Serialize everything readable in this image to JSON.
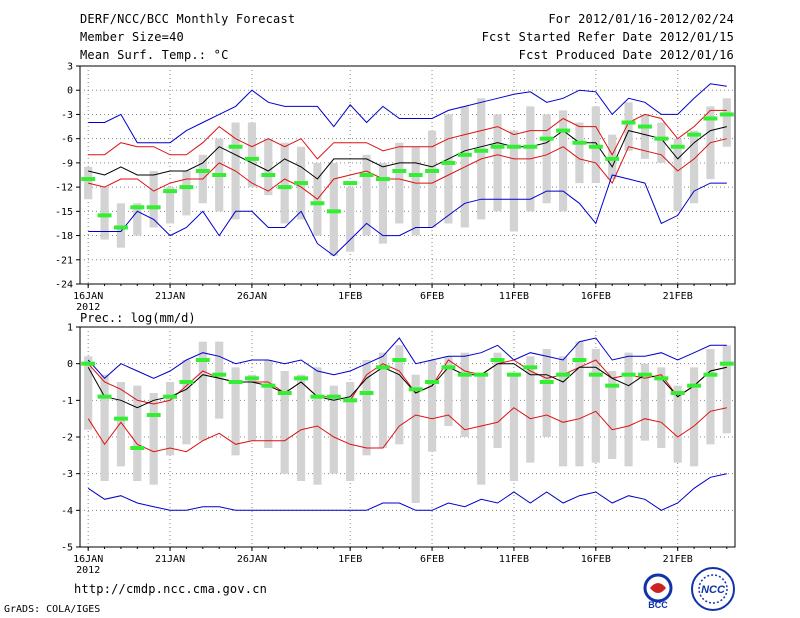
{
  "header": {
    "title": "DERF/NCC/BCC Monthly Forecast",
    "member_size": "Member Size=40",
    "variable": "Mean Surf. Temp.: °C",
    "period": "For 2012/01/16-2012/02/24",
    "started": "Fcst Started Refer Date 2012/01/15",
    "produced": "Fcst Produced Date 2012/01/16"
  },
  "footer": {
    "url": "http://cmdp.ncc.cma.gov.cn",
    "grads": "GrADS: COLA/IGES",
    "logo_bcc": "BCC",
    "logo_ncc": "NCC"
  },
  "colors": {
    "box": "#d3d3d3",
    "median": "#33ee33",
    "mean": "#000000",
    "spread": "#dd1111",
    "extreme": "#0000cc",
    "grid": "#888888"
  },
  "chart_data": [
    {
      "type": "line",
      "title": "Mean Surf. Temp.: °C",
      "x": [
        "16JAN",
        "17JAN",
        "18JAN",
        "19JAN",
        "20JAN",
        "21JAN",
        "22JAN",
        "23JAN",
        "24JAN",
        "25JAN",
        "26JAN",
        "27JAN",
        "28JAN",
        "29JAN",
        "30JAN",
        "31JAN",
        "1FEB",
        "2FEB",
        "3FEB",
        "4FEB",
        "5FEB",
        "6FEB",
        "7FEB",
        "8FEB",
        "9FEB",
        "10FEB",
        "11FEB",
        "12FEB",
        "13FEB",
        "14FEB",
        "15FEB",
        "16FEB",
        "17FEB",
        "18FEB",
        "19FEB",
        "20FEB",
        "21FEB",
        "22FEB",
        "23FEB",
        "24FEB"
      ],
      "x_tick_labels": [
        "16JAN",
        "21JAN",
        "26JAN",
        "1FEB",
        "6FEB",
        "11FEB",
        "16FEB",
        "21FEB"
      ],
      "x_tick_indices": [
        0,
        5,
        10,
        16,
        21,
        26,
        31,
        36
      ],
      "x_year_label": "2012",
      "ylim": [
        -24,
        3
      ],
      "yticks": [
        -24,
        -21,
        -18,
        -15,
        -12,
        -9,
        -6,
        -3,
        0,
        3
      ],
      "series": [
        {
          "name": "max",
          "values": [
            -4,
            -4,
            -3,
            -6.5,
            -6.5,
            -6.5,
            -5,
            -4,
            -3,
            -2,
            0,
            -1.5,
            -2,
            -2,
            -2,
            -4.5,
            -1.8,
            -4,
            -2,
            -3.5,
            -3.5,
            -3.5,
            -2.5,
            -2,
            -1.5,
            -1,
            -0.5,
            -0.2,
            -1.5,
            -1,
            0,
            -0.2,
            -3,
            -1,
            -1.5,
            -3,
            -3,
            -1,
            0.8,
            0.5
          ]
        },
        {
          "name": "upper",
          "values": [
            -8,
            -8,
            -6.5,
            -7,
            -7,
            -8,
            -8,
            -6.5,
            -4.5,
            -6,
            -7,
            -6,
            -7,
            -6,
            -8.5,
            -6.5,
            -6.5,
            -6.5,
            -7.5,
            -7,
            -7,
            -7,
            -6,
            -5.5,
            -5,
            -4.5,
            -5.5,
            -5,
            -5,
            -3.5,
            -4.5,
            -4.5,
            -8,
            -4,
            -3,
            -3.5,
            -6,
            -4.5,
            -2.5,
            -2.5
          ]
        },
        {
          "name": "mean",
          "values": [
            -10,
            -10.5,
            -9.5,
            -10.5,
            -10.5,
            -10,
            -10,
            -9,
            -7,
            -8,
            -9,
            -10,
            -8.5,
            -9.5,
            -11,
            -8.5,
            -8.5,
            -8.5,
            -9.5,
            -9,
            -9,
            -9.5,
            -8.5,
            -7.5,
            -7,
            -6.5,
            -7,
            -7,
            -6.5,
            -5,
            -6.5,
            -6.5,
            -9.5,
            -5,
            -5.5,
            -6,
            -8.5,
            -6.5,
            -5,
            -4.5
          ]
        },
        {
          "name": "lower",
          "values": [
            -11.5,
            -12,
            -11,
            -11,
            -12.5,
            -11.5,
            -11,
            -11,
            -9,
            -10,
            -11.5,
            -12.5,
            -11,
            -12,
            -13.5,
            -11,
            -10.5,
            -10,
            -11,
            -11,
            -11.5,
            -11.5,
            -10.5,
            -9.5,
            -8.5,
            -8,
            -8.5,
            -8.5,
            -8,
            -7,
            -8.5,
            -9,
            -11.5,
            -7,
            -7.5,
            -8,
            -10,
            -8.5,
            -6.5,
            -6
          ]
        },
        {
          "name": "min",
          "values": [
            -17.5,
            -17.5,
            -17.5,
            -15,
            -16,
            -18,
            -17,
            -15,
            -18,
            -15,
            -15,
            -17,
            -17,
            -15,
            -19,
            -20.5,
            -18.5,
            -16.5,
            -18,
            -18,
            -17,
            -17,
            -15.5,
            -14,
            -13.5,
            -13.5,
            -13.5,
            -13.5,
            -12.5,
            -12.5,
            -14,
            -16.5,
            -10.5,
            -11,
            -11.5,
            -16.5,
            -15.5,
            -12.5,
            -11.5,
            -11.5
          ]
        }
      ],
      "boxes": [
        [
          -13.5,
          -9.5
        ],
        [
          -18.5,
          -12
        ],
        [
          -19.5,
          -14
        ],
        [
          -18,
          -14
        ],
        [
          -17,
          -10
        ],
        [
          -16.5,
          -12
        ],
        [
          -15.5,
          -10
        ],
        [
          -14,
          -8
        ],
        [
          -15,
          -6
        ],
        [
          -16,
          -4
        ],
        [
          -12,
          -4
        ],
        [
          -13,
          -6
        ],
        [
          -16.5,
          -6.5
        ],
        [
          -16,
          -7
        ],
        [
          -18,
          -9
        ],
        [
          -20.5,
          -9
        ],
        [
          -20,
          -12
        ],
        [
          -18,
          -8
        ],
        [
          -19,
          -9
        ],
        [
          -16.5,
          -6.5
        ],
        [
          -18,
          -7
        ],
        [
          -17,
          -5
        ],
        [
          -16.5,
          -3
        ],
        [
          -17,
          -2
        ],
        [
          -16,
          -1
        ],
        [
          -15,
          -3
        ],
        [
          -17.5,
          -5
        ],
        [
          -15,
          -2
        ],
        [
          -14,
          -3
        ],
        [
          -15,
          -2.5
        ],
        [
          -11.5,
          -4
        ],
        [
          -11.5,
          -2
        ],
        [
          -11,
          -5.5
        ],
        [
          -7.5,
          -1.5
        ],
        [
          -8.5,
          -3
        ],
        [
          -9,
          -4
        ],
        [
          -15,
          -6
        ],
        [
          -14,
          -5
        ],
        [
          -11,
          -2
        ],
        [
          -7,
          -1
        ]
      ],
      "medians": [
        -11,
        -15.5,
        -17,
        -14.5,
        -14.5,
        -12.5,
        -12,
        -10,
        -10.5,
        -7,
        -8.5,
        -10.5,
        -12,
        -11.5,
        -14,
        -15,
        -11.5,
        -10.5,
        -11,
        -10,
        -10.5,
        -10,
        -9,
        -8,
        -7.5,
        -7,
        -7,
        -7,
        -6,
        -5,
        -6.5,
        -7,
        -8.5,
        -4,
        -4.5,
        -6,
        -7,
        -5.5,
        -3.5,
        -3
      ]
    },
    {
      "type": "line",
      "title": "Prec.: log(mm/d)",
      "x": [
        "16JAN",
        "17JAN",
        "18JAN",
        "19JAN",
        "20JAN",
        "21JAN",
        "22JAN",
        "23JAN",
        "24JAN",
        "25JAN",
        "26JAN",
        "27JAN",
        "28JAN",
        "29JAN",
        "30JAN",
        "31JAN",
        "1FEB",
        "2FEB",
        "3FEB",
        "4FEB",
        "5FEB",
        "6FEB",
        "7FEB",
        "8FEB",
        "9FEB",
        "10FEB",
        "11FEB",
        "12FEB",
        "13FEB",
        "14FEB",
        "15FEB",
        "16FEB",
        "17FEB",
        "18FEB",
        "19FEB",
        "20FEB",
        "21FEB",
        "22FEB",
        "23FEB",
        "24FEB"
      ],
      "x_tick_labels": [
        "16JAN",
        "21JAN",
        "26JAN",
        "1FEB",
        "6FEB",
        "11FEB",
        "16FEB",
        "21FEB"
      ],
      "x_tick_indices": [
        0,
        5,
        10,
        16,
        21,
        26,
        31,
        36
      ],
      "x_year_label": "2012",
      "ylim": [
        -5,
        1
      ],
      "yticks": [
        -5,
        -4,
        -3,
        -2,
        -1,
        0,
        1
      ],
      "series": [
        {
          "name": "max",
          "values": [
            0.1,
            -0.4,
            0,
            -0.2,
            -0.4,
            -0.2,
            0.1,
            0.3,
            0.2,
            0,
            0.1,
            0.1,
            0,
            0.1,
            -0.2,
            -0.3,
            -0.2,
            0,
            0.2,
            0.7,
            0,
            0.1,
            0.2,
            0.2,
            0.3,
            0.5,
            0.1,
            0.3,
            0.2,
            0.1,
            0.6,
            0.7,
            0.1,
            0.2,
            0.2,
            0.3,
            0.1,
            0.3,
            0.5,
            0.5
          ]
        },
        {
          "name": "upper",
          "values": [
            0,
            -0.5,
            -0.7,
            -1,
            -1.1,
            -1,
            -0.6,
            -0.2,
            -0.4,
            -0.5,
            -0.5,
            -0.5,
            -0.8,
            -0.5,
            -0.9,
            -0.9,
            -1,
            -0.3,
            0,
            -0.2,
            -0.8,
            -0.6,
            0.1,
            -0.2,
            -0.3,
            0,
            0.1,
            -0.2,
            -0.4,
            -0.3,
            -0.1,
            0.1,
            -0.4,
            -0.3,
            -0.4,
            -0.3,
            -0.9,
            -0.6,
            -0.2,
            -0.1
          ]
        },
        {
          "name": "mean",
          "values": [
            -0.1,
            -0.9,
            -1,
            -1.2,
            -1,
            -0.9,
            -0.7,
            -0.3,
            -0.4,
            -0.5,
            -0.5,
            -0.6,
            -0.8,
            -0.5,
            -0.9,
            -1,
            -0.9,
            -0.4,
            -0.1,
            -0.3,
            -0.8,
            -0.6,
            -0.1,
            -0.3,
            -0.3,
            0,
            0,
            -0.3,
            -0.3,
            -0.5,
            -0.1,
            -0.1,
            -0.4,
            -0.6,
            -0.3,
            -0.4,
            -0.9,
            -0.6,
            -0.2,
            -0.1
          ]
        },
        {
          "name": "lower",
          "values": [
            -1.5,
            -2.2,
            -1.6,
            -2.2,
            -2.4,
            -2.3,
            -2.4,
            -2.1,
            -1.9,
            -2.2,
            -2.1,
            -2.1,
            -2.1,
            -1.8,
            -1.7,
            -2,
            -2.2,
            -2.3,
            -2.3,
            -1.7,
            -1.4,
            -1.5,
            -1.4,
            -1.8,
            -1.7,
            -1.6,
            -1.2,
            -1.5,
            -1.4,
            -1.6,
            -1.5,
            -1.3,
            -1.8,
            -1.7,
            -1.5,
            -1.6,
            -2,
            -1.7,
            -1.3,
            -1.2
          ]
        },
        {
          "name": "min",
          "values": [
            -3.4,
            -3.7,
            -3.6,
            -3.8,
            -3.9,
            -4,
            -4,
            -3.9,
            -3.9,
            -4,
            -4,
            -4,
            -4,
            -4,
            -4,
            -4,
            -4,
            -4,
            -3.8,
            -3.8,
            -4,
            -4,
            -3.8,
            -3.9,
            -3.7,
            -3.8,
            -3.5,
            -3.8,
            -3.5,
            -3.8,
            -3.6,
            -3.5,
            -3.8,
            -3.6,
            -3.7,
            -4,
            -3.8,
            -3.4,
            -3.1,
            -3
          ]
        }
      ],
      "boxes": [
        [
          -1.8,
          0.2
        ],
        [
          -3.2,
          -0.3
        ],
        [
          -2.8,
          -0.5
        ],
        [
          -3.2,
          -0.6
        ],
        [
          -3.3,
          -0.8
        ],
        [
          -2.5,
          -0.5
        ],
        [
          -2.2,
          0.1
        ],
        [
          -2.1,
          0.6
        ],
        [
          -1.5,
          0.6
        ],
        [
          -2.5,
          -0.1
        ],
        [
          -2.1,
          -0.3
        ],
        [
          -2.3,
          0.1
        ],
        [
          -3,
          -0.2
        ],
        [
          -3.2,
          -0.3
        ],
        [
          -3.3,
          -0.1
        ],
        [
          -3,
          -0.6
        ],
        [
          -3.2,
          -0.5
        ],
        [
          -2.5,
          0.1
        ],
        [
          -2.3,
          0.3
        ],
        [
          -2.2,
          0.5
        ],
        [
          -3.8,
          -0.3
        ],
        [
          -2.4,
          0.1
        ],
        [
          -1.7,
          0.2
        ],
        [
          -2,
          0.3
        ],
        [
          -3.3,
          -0.3
        ],
        [
          -2.3,
          0.3
        ],
        [
          -3.2,
          -0.3
        ],
        [
          -2.7,
          0.2
        ],
        [
          -2,
          0.4
        ],
        [
          -2.8,
          0.2
        ],
        [
          -2.8,
          0.6
        ],
        [
          -2.7,
          0.4
        ],
        [
          -2.6,
          -0.2
        ],
        [
          -2.8,
          0.3
        ],
        [
          -2.1,
          0
        ],
        [
          -2.3,
          -0.1
        ],
        [
          -2.7,
          -0.6
        ],
        [
          -2.8,
          -0.1
        ],
        [
          -2.2,
          0.4
        ],
        [
          -1.9,
          0.5
        ]
      ],
      "medians": [
        0,
        -0.9,
        -1.5,
        -2.3,
        -1.4,
        -0.9,
        -0.5,
        0.1,
        -0.3,
        -0.5,
        -0.4,
        -0.6,
        -0.8,
        -0.4,
        -0.9,
        -0.9,
        -1,
        -0.8,
        -0.1,
        0.1,
        -0.7,
        -0.5,
        -0.1,
        -0.3,
        -0.3,
        0.1,
        -0.3,
        -0.1,
        -0.5,
        -0.3,
        0.1,
        -0.3,
        -0.6,
        -0.3,
        -0.3,
        -0.4,
        -0.8,
        -0.6,
        -0.3,
        0
      ]
    }
  ]
}
